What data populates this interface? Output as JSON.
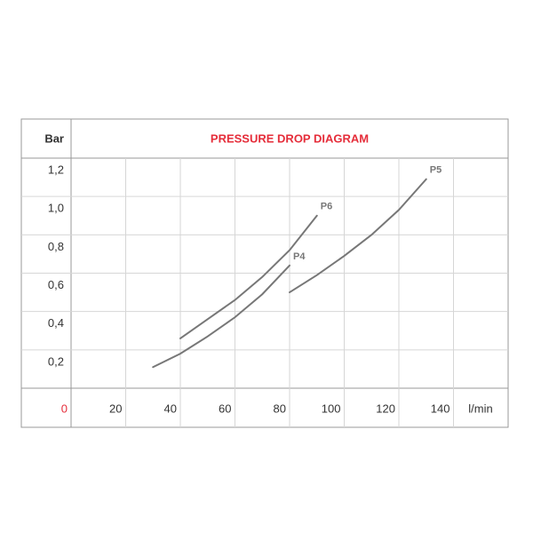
{
  "chart_data": {
    "type": "line",
    "title": "PRESSURE DROP DIAGRAM",
    "title_color": "#e52d3a",
    "y_label": "Bar",
    "x_label": "l/min",
    "xlim": [
      0,
      160
    ],
    "xticks": [
      0,
      20,
      40,
      60,
      80,
      100,
      120,
      140
    ],
    "origin_label_color": "#e52d3a",
    "ylim": [
      0,
      1.2
    ],
    "yticks": [
      {
        "value": 0.2,
        "label": "0,2"
      },
      {
        "value": 0.4,
        "label": "0,4"
      },
      {
        "value": 0.6,
        "label": "0,6"
      },
      {
        "value": 0.8,
        "label": "0,8"
      },
      {
        "value": 1.0,
        "label": "1,0"
      },
      {
        "value": 1.2,
        "label": "1,2"
      }
    ],
    "grid": true,
    "series": [
      {
        "name": "P6",
        "color": "#777777",
        "x": [
          40,
          50,
          60,
          70,
          80,
          90
        ],
        "values": [
          0.26,
          0.36,
          0.46,
          0.58,
          0.72,
          0.9
        ]
      },
      {
        "name": "P4",
        "color": "#777777",
        "x": [
          30,
          40,
          50,
          60,
          70,
          80
        ],
        "values": [
          0.11,
          0.18,
          0.27,
          0.37,
          0.49,
          0.64
        ]
      },
      {
        "name": "P5",
        "color": "#777777",
        "x": [
          80,
          90,
          100,
          110,
          120,
          130
        ],
        "values": [
          0.5,
          0.59,
          0.69,
          0.8,
          0.93,
          1.09
        ]
      }
    ]
  }
}
